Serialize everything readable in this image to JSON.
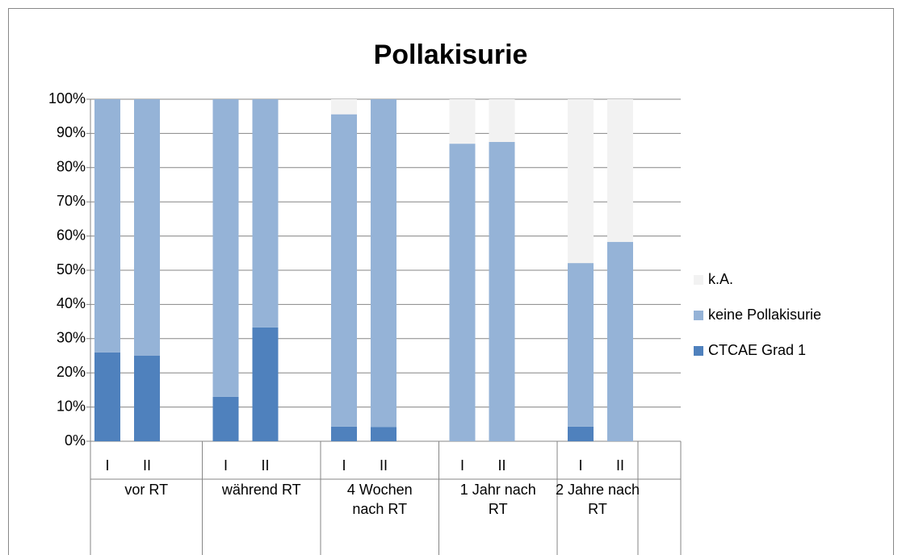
{
  "chart_data": {
    "type": "stacked_bar",
    "title": "Pollakisurie",
    "categories": [
      "I",
      "II",
      "I",
      "II",
      "I",
      "II",
      "I",
      "II",
      "I",
      "II"
    ],
    "groups": [
      "vor RT",
      "während RT",
      "4 Wochen nach RT",
      "1 Jahr nach RT",
      "2 Jahre nach RT"
    ],
    "series": [
      {
        "name": "CTCAE Grad 1",
        "color": "#4f81bd",
        "values": [
          26,
          25,
          13,
          33.3,
          4.3,
          4.2,
          0,
          0,
          4.3,
          0
        ]
      },
      {
        "name": "keine Pollakisurie",
        "color": "#95b3d7",
        "values": [
          74,
          75,
          87,
          66.7,
          91.3,
          95.8,
          87,
          87.5,
          47.8,
          58.3
        ]
      },
      {
        "name": "k.A.",
        "color": "#f2f2f2",
        "values": [
          0,
          0,
          0,
          0,
          4.4,
          0,
          13,
          12.5,
          47.9,
          41.7
        ]
      }
    ],
    "ylim": [
      0,
      100
    ],
    "yticks": [
      {
        "value": 0,
        "label": "0%"
      },
      {
        "value": 10,
        "label": "10%"
      },
      {
        "value": 20,
        "label": "20%"
      },
      {
        "value": 30,
        "label": "30%"
      },
      {
        "value": 40,
        "label": "40%"
      },
      {
        "value": 50,
        "label": "50%"
      },
      {
        "value": 60,
        "label": "60%"
      },
      {
        "value": 70,
        "label": "70%"
      },
      {
        "value": 80,
        "label": "80%"
      },
      {
        "value": 90,
        "label": "90%"
      },
      {
        "value": 100,
        "label": "100%"
      }
    ],
    "grid": true,
    "legend": "right"
  }
}
